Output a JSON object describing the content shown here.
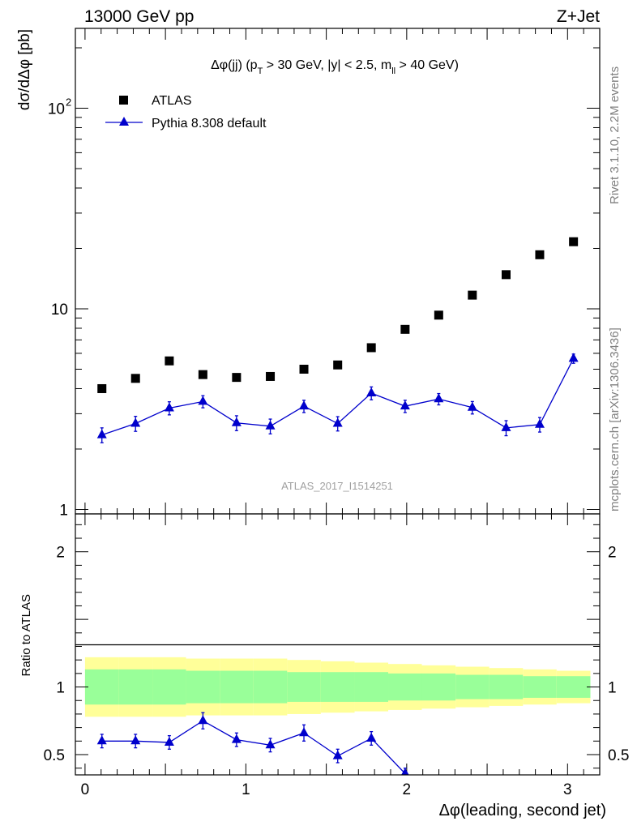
{
  "header": {
    "left": "13000 GeV pp",
    "right": "Z+Jet"
  },
  "side_labels": {
    "rivet": "Rivet 3.1.10,  2.2M events",
    "mcplots": "mcplots.cern.ch [arXiv:1306.3436]"
  },
  "watermark": "ATLAS_2017_I1514251",
  "colors": {
    "mc": "#0000cc",
    "band_inner": "#99ff99",
    "band_outer": "#ffff99",
    "data": "#000000"
  },
  "chart_data": [
    {
      "id": "main",
      "type": "scatter",
      "title": "Δφ(jj) (p_T > 30 GeV, |y| < 2.5, m_ll > 40 GeV)",
      "title_parts": {
        "a": "Δφ(jj) (p",
        "sub1": "T",
        "b": " > 30 GeV, |y| < 2.5, m",
        "sub2": "ll",
        "c": " > 40 GeV)"
      },
      "ylabel": "dσ/dΔφ [pb]",
      "yscale": "log",
      "ylim": [
        0.95,
        250
      ],
      "xlim": [
        -0.06,
        3.2
      ],
      "y_tick_labels": [
        {
          "value": 1,
          "label": "1"
        },
        {
          "value": 10,
          "label": "10"
        },
        {
          "value": 100,
          "label": "10",
          "sup": "2"
        }
      ],
      "legend": {
        "data_label": "ATLAS",
        "mc_label": "Pythia 8.308 default",
        "position": "top-left"
      },
      "series": [
        {
          "name": "ATLAS",
          "marker": "square",
          "x": [
            0.105,
            0.314,
            0.524,
            0.733,
            0.942,
            1.152,
            1.361,
            1.571,
            1.78,
            1.99,
            2.199,
            2.408,
            2.618,
            2.827,
            3.037
          ],
          "values": [
            4.0,
            4.5,
            5.5,
            4.7,
            4.55,
            4.6,
            5.0,
            5.25,
            6.4,
            7.9,
            9.3,
            11.7,
            14.8,
            18.6,
            21.6
          ]
        },
        {
          "name": "Pythia 8.308 default",
          "marker": "triangle",
          "x": [
            0.105,
            0.314,
            0.524,
            0.733,
            0.942,
            1.152,
            1.361,
            1.571,
            1.78,
            1.99,
            2.199,
            2.408,
            2.618,
            2.827,
            3.037
          ],
          "values": [
            2.35,
            2.68,
            3.2,
            3.45,
            2.7,
            2.6,
            3.27,
            2.68,
            3.8,
            3.27,
            3.55,
            3.22,
            2.55,
            2.65,
            5.65
          ],
          "errors": [
            0.2,
            0.23,
            0.24,
            0.24,
            0.23,
            0.22,
            0.23,
            0.22,
            0.28,
            0.23,
            0.23,
            0.23,
            0.22,
            0.22,
            0.3
          ]
        }
      ]
    },
    {
      "id": "ratio",
      "type": "line",
      "ylabel": "Ratio to ATLAS",
      "ylim": [
        0.35,
        2.28
      ],
      "xlim": [
        -0.06,
        3.2
      ],
      "xlabel": "Δφ(leading, second jet)",
      "x_tick_labels": [
        {
          "value": 0,
          "label": "0"
        },
        {
          "value": 1,
          "label": "1"
        },
        {
          "value": 2,
          "label": "2"
        },
        {
          "value": 3,
          "label": "3"
        }
      ],
      "y_tick_labels": [
        {
          "value": 0.5,
          "label": "0.5"
        },
        {
          "value": 1,
          "label": "1"
        },
        {
          "value": 2,
          "label": "2"
        }
      ],
      "bands": {
        "bin_edges": [
          0,
          0.209,
          0.419,
          0.628,
          0.838,
          1.047,
          1.257,
          1.466,
          1.676,
          1.885,
          2.094,
          2.304,
          2.513,
          2.723,
          2.932,
          3.142
        ],
        "inner_lo": [
          0.87,
          0.87,
          0.87,
          0.88,
          0.88,
          0.88,
          0.89,
          0.89,
          0.89,
          0.9,
          0.9,
          0.91,
          0.91,
          0.92,
          0.92
        ],
        "inner_hi": [
          1.13,
          1.13,
          1.13,
          1.12,
          1.12,
          1.12,
          1.11,
          1.11,
          1.11,
          1.1,
          1.1,
          1.09,
          1.09,
          1.08,
          1.08
        ],
        "outer_lo": [
          0.78,
          0.78,
          0.78,
          0.79,
          0.79,
          0.79,
          0.8,
          0.81,
          0.82,
          0.83,
          0.84,
          0.85,
          0.86,
          0.87,
          0.88
        ],
        "outer_hi": [
          1.22,
          1.22,
          1.22,
          1.21,
          1.21,
          1.21,
          1.2,
          1.19,
          1.18,
          1.17,
          1.16,
          1.15,
          1.14,
          1.13,
          1.12
        ]
      },
      "series": [
        {
          "name": "Pythia 8.308 default / ATLAS",
          "x": [
            0.105,
            0.314,
            0.524,
            0.733,
            0.942,
            1.152,
            1.361,
            1.571,
            1.78,
            1.99
          ],
          "values": [
            0.6,
            0.6,
            0.59,
            0.75,
            0.61,
            0.57,
            0.66,
            0.49,
            0.62,
            0.36
          ],
          "errors": [
            0.05,
            0.05,
            0.05,
            0.06,
            0.05,
            0.05,
            0.06,
            0.05,
            0.05,
            0.04
          ],
          "continues_below_axis": true
        }
      ]
    }
  ]
}
